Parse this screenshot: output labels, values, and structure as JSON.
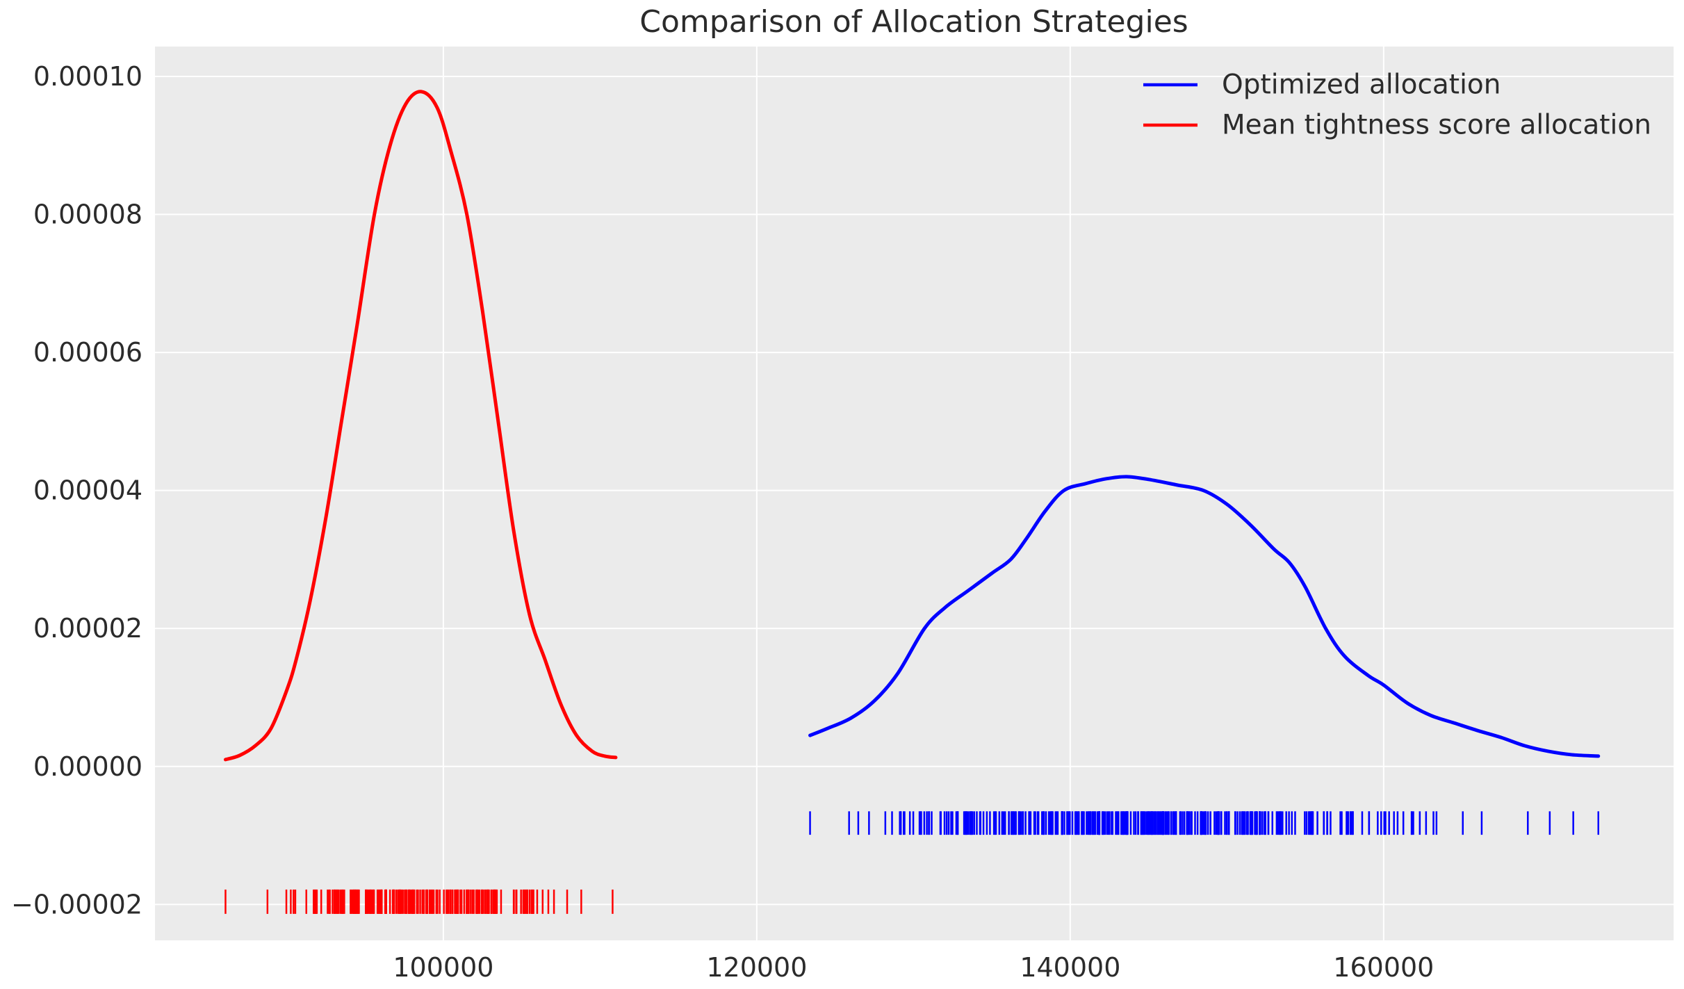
{
  "figure": {
    "title": "Comparison of Allocation Strategies",
    "background_color": "#ffffff",
    "axes_background_color": "#ebebeb",
    "grid_color": "#ffffff",
    "text_color": "#2b2b2b"
  },
  "chart_data": {
    "type": "line",
    "subtype": "kde-density-with-rug",
    "title": "Comparison of Allocation Strategies",
    "xlabel": "",
    "ylabel": "",
    "xlim": [
      81600,
      178500
    ],
    "ylim": [
      -2.52e-05,
      0.00010433
    ],
    "grid": true,
    "x_ticks": [
      {
        "value": 100000,
        "label": "100000"
      },
      {
        "value": 120000,
        "label": "120000"
      },
      {
        "value": 140000,
        "label": "140000"
      },
      {
        "value": 160000,
        "label": "160000"
      }
    ],
    "y_ticks": [
      {
        "value": -2e-05,
        "label": "−0.00002"
      },
      {
        "value": 0.0,
        "label": "0.00000"
      },
      {
        "value": 2e-05,
        "label": "0.00002"
      },
      {
        "value": 4e-05,
        "label": "0.00004"
      },
      {
        "value": 6e-05,
        "label": "0.00006"
      },
      {
        "value": 8e-05,
        "label": "0.00008"
      },
      {
        "value": 0.0001,
        "label": "0.00010"
      }
    ],
    "legend": {
      "position": "upper right",
      "frame": false,
      "entries": [
        {
          "label": "Optimized allocation",
          "color": "#0000ff"
        },
        {
          "label": "Mean tightness score allocation",
          "color": "#ff0000"
        }
      ]
    },
    "series": [
      {
        "name": "Optimized allocation",
        "color": "#0000ff",
        "peak": {
          "x": 143600,
          "density": 4.2e-05
        },
        "points": [
          [
            123400,
            4.5e-06
          ],
          [
            124500,
            5.5e-06
          ],
          [
            126000,
            7e-06
          ],
          [
            127500,
            9.5e-06
          ],
          [
            129000,
            1.35e-05
          ],
          [
            130700,
            2e-05
          ],
          [
            132000,
            2.3e-05
          ],
          [
            133500,
            2.55e-05
          ],
          [
            135000,
            2.8e-05
          ],
          [
            136200,
            3e-05
          ],
          [
            137200,
            3.3e-05
          ],
          [
            138400,
            3.7e-05
          ],
          [
            139600,
            4e-05
          ],
          [
            141000,
            4.1e-05
          ],
          [
            142300,
            4.17e-05
          ],
          [
            143600,
            4.2e-05
          ],
          [
            145000,
            4.16e-05
          ],
          [
            146800,
            4.08e-05
          ],
          [
            148500,
            4e-05
          ],
          [
            150000,
            3.8e-05
          ],
          [
            151500,
            3.5e-05
          ],
          [
            153000,
            3.15e-05
          ],
          [
            154000,
            2.95e-05
          ],
          [
            155000,
            2.6e-05
          ],
          [
            156300,
            2e-05
          ],
          [
            157500,
            1.6e-05
          ],
          [
            159000,
            1.32e-05
          ],
          [
            160000,
            1.18e-05
          ],
          [
            161500,
            9.2e-06
          ],
          [
            163000,
            7.4e-06
          ],
          [
            164500,
            6.3e-06
          ],
          [
            166000,
            5.2e-06
          ],
          [
            167500,
            4.2e-06
          ],
          [
            169000,
            3e-06
          ],
          [
            170500,
            2.2e-06
          ],
          [
            172000,
            1.7e-06
          ],
          [
            173700,
            1.5e-06
          ]
        ]
      },
      {
        "name": "Mean tightness score allocation",
        "color": "#ff0000",
        "peak": {
          "x": 98600,
          "density": 9.78e-05
        },
        "points": [
          [
            86100,
            1e-06
          ],
          [
            87000,
            1.6e-06
          ],
          [
            88000,
            3e-06
          ],
          [
            89000,
            5.5e-06
          ],
          [
            90000,
            1.1e-05
          ],
          [
            90600,
            1.54e-05
          ],
          [
            91500,
            2.4e-05
          ],
          [
            92500,
            3.6e-05
          ],
          [
            93500,
            5e-05
          ],
          [
            94500,
            6.4e-05
          ],
          [
            95600,
            8e-05
          ],
          [
            96600,
            9e-05
          ],
          [
            97600,
            9.6e-05
          ],
          [
            98600,
            9.78e-05
          ],
          [
            99600,
            9.55e-05
          ],
          [
            100500,
            8.9e-05
          ],
          [
            101500,
            8e-05
          ],
          [
            102500,
            6.6e-05
          ],
          [
            103500,
            5e-05
          ],
          [
            104500,
            3.4e-05
          ],
          [
            105500,
            2.2e-05
          ],
          [
            106500,
            1.54e-05
          ],
          [
            107500,
            9e-06
          ],
          [
            108500,
            4.5e-06
          ],
          [
            109500,
            2.2e-06
          ],
          [
            110300,
            1.5e-06
          ],
          [
            111000,
            1.3e-06
          ]
        ]
      }
    ],
    "rugs": [
      {
        "name": "Optimized allocation samples",
        "color": "#0000ff",
        "tick_center_y": -8.2e-06,
        "tick_half_height": 1.7e-06,
        "range": [
          123400,
          173700
        ],
        "count": 340,
        "distribution": {
          "mean": 144800,
          "sd": 9200,
          "min": 124800,
          "max": 168600,
          "seed": 99
        },
        "outliers": [
          123400,
          169200,
          170600,
          172100,
          173700
        ]
      },
      {
        "name": "Mean tightness score samples",
        "color": "#ff0000",
        "tick_center_y": -1.96e-05,
        "tick_half_height": 1.76e-06,
        "range": [
          86100,
          111000
        ],
        "count": 195,
        "distribution": {
          "mean": 98300,
          "sd": 3900,
          "min": 88100,
          "max": 107400,
          "seed": 13
        },
        "outliers": [
          86100,
          107900,
          108800,
          110800
        ]
      }
    ]
  }
}
